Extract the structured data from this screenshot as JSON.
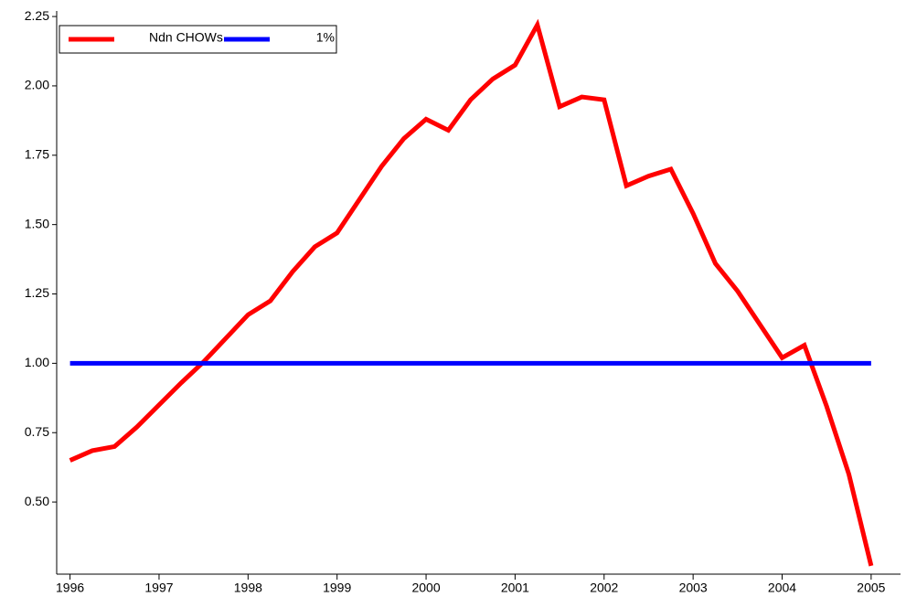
{
  "chart_data": {
    "type": "line",
    "series": [
      {
        "name": "Ndn CHOWs",
        "color": "#ff0000",
        "x": [
          1996,
          1996.25,
          1996.5,
          1996.75,
          1997,
          1997.25,
          1997.5,
          1997.75,
          1998,
          1998.25,
          1998.5,
          1998.75,
          1999,
          1999.25,
          1999.5,
          1999.75,
          2000,
          2000.25,
          2000.5,
          2000.75,
          2001,
          2001.25,
          2001.5,
          2001.75,
          2002,
          2002.25,
          2002.5,
          2002.75,
          2003,
          2003.25,
          2003.5,
          2003.75,
          2004,
          2004.25,
          2004.5,
          2004.75,
          2005
        ],
        "values": [
          0.65,
          0.685,
          0.7,
          0.77,
          0.85,
          0.93,
          1.005,
          1.09,
          1.175,
          1.225,
          1.33,
          1.42,
          1.47,
          1.59,
          1.71,
          1.81,
          1.88,
          1.84,
          1.95,
          2.025,
          2.075,
          2.22,
          1.925,
          1.96,
          1.95,
          1.64,
          1.675,
          1.7,
          1.54,
          1.36,
          1.26,
          1.14,
          1.02,
          1.065,
          0.845,
          0.6,
          0.27
        ]
      },
      {
        "name": "1%",
        "color": "#0000ff",
        "x": [
          1996,
          2005
        ],
        "values": [
          1,
          1
        ]
      }
    ],
    "xlim": [
      1995.85,
      2005.33
    ],
    "xticks": [
      1996,
      1997,
      1998,
      1999,
      2000,
      2001,
      2002,
      2003,
      2004,
      2005
    ],
    "ylim": [
      0.24,
      2.27
    ],
    "yticks": [
      {
        "value": 0.5,
        "label": "0.50"
      },
      {
        "value": 0.75,
        "label": "0.75"
      },
      {
        "value": 1,
        "label": "1.00"
      },
      {
        "value": 1.25,
        "label": "1.25"
      },
      {
        "value": 1.5,
        "label": "1.50"
      },
      {
        "value": 1.75,
        "label": "1.75"
      },
      {
        "value": 2,
        "label": "2.00"
      },
      {
        "value": 2.25,
        "label": "2.25"
      }
    ],
    "legend": "top-left"
  }
}
